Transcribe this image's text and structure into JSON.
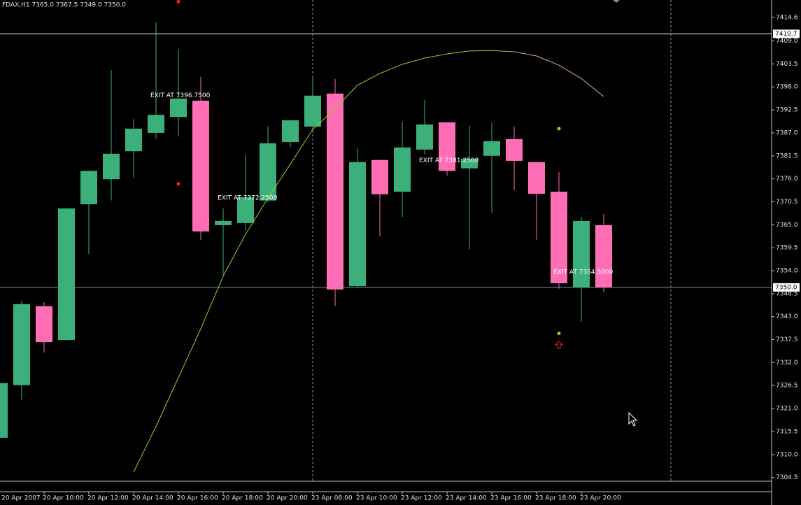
{
  "chart_data": {
    "type": "candlestick",
    "title": "FDAX,H1  7365.0 7367.5 7349.0 7350.0",
    "categories": [
      "20 Apr 2007",
      null,
      "20 Apr 10:00",
      null,
      "20 Apr 12:00",
      null,
      "20 Apr 14:00",
      null,
      "20 Apr 16:00",
      null,
      "20 Apr 18:00",
      null,
      "20 Apr 20:00",
      null,
      "23 Apr 08:00",
      null,
      "23 Apr 10:00",
      null,
      "23 Apr 12:00",
      null,
      "23 Apr 14:00",
      null,
      "23 Apr 16:00",
      null,
      "23 Apr 18:00",
      null,
      "23 Apr 20:00",
      null
    ],
    "open": [
      7314.0,
      7326.6,
      7345.5,
      7337.4,
      7369.9,
      7375.9,
      7382.6,
      7387.0,
      7390.8,
      7394.7,
      7364.9,
      7365.4,
      7370.8,
      7384.8,
      7388.5,
      7396.4,
      7350.3,
      7380.5,
      7372.9,
      7383.0,
      7389.5,
      7378.5,
      7381.5,
      7385.5,
      7380.0,
      7372.9,
      7350.0,
      7364.9
    ],
    "high": [
      7327.1,
      7346.8,
      7346.5,
      7369.0,
      7378.0,
      7402.0,
      7390.3,
      7413.4,
      7407.1,
      7400.4,
      7368.9,
      7381.6,
      7388.5,
      7390.0,
      7400.2,
      7399.9,
      7383.3,
      7380.5,
      7389.7,
      7394.9,
      7389.5,
      7388.7,
      7389.5,
      7388.5,
      7380.0,
      7377.6,
      7366.9,
      7367.6
    ],
    "low": [
      7313.5,
      7323.1,
      7334.4,
      7337.2,
      7358.0,
      7370.8,
      7376.3,
      7385.6,
      7386.1,
      7361.4,
      7353.0,
      7363.6,
      7370.3,
      7383.6,
      7387.0,
      7345.5,
      7350.0,
      7362.2,
      7366.9,
      7381.8,
      7376.8,
      7359.2,
      7367.9,
      7373.3,
      7361.4,
      7349.7,
      7341.8,
      7348.8
    ],
    "close": [
      7327.1,
      7346.0,
      7336.9,
      7368.9,
      7377.9,
      7382.0,
      7388.0,
      7391.3,
      7395.2,
      7363.4,
      7365.9,
      7371.6,
      7384.5,
      7390.0,
      7395.9,
      7349.5,
      7380.0,
      7372.3,
      7383.5,
      7389.0,
      7377.9,
      7380.8,
      7385.0,
      7380.3,
      7372.4,
      7351.0,
      7365.9,
      7350.0
    ],
    "up_color": "#3cb07a",
    "down_color": "#ff6eb4",
    "indicator": [
      {
        "color": "#9acd32",
        "values": [
          null,
          null,
          null,
          null,
          null,
          null,
          7305.8,
          7316.7,
          7328.4,
          7340.1,
          7352.7,
          7362.7,
          7371.4,
          7379.5,
          7387.8,
          7392.8,
          7398.4,
          7401.2,
          7403.4,
          7404.9,
          7405.9,
          7406.6,
          7406.7,
          7406.4,
          null,
          null,
          null,
          null
        ]
      },
      {
        "color": "#e8a0c8",
        "values": [
          null,
          null,
          null,
          null,
          null,
          null,
          null,
          null,
          null,
          null,
          null,
          null,
          null,
          null,
          null,
          null,
          null,
          null,
          null,
          null,
          null,
          null,
          null,
          7406.4,
          7405.4,
          7403.2,
          7400.0,
          7395.7
        ]
      }
    ],
    "ylim": [
      7303.6,
      7418.8
    ],
    "yticks": [
      {
        "value": 7414.6,
        "label": "7414.6"
      },
      {
        "value": 7409.0,
        "label": "7409.0"
      },
      {
        "value": 7403.5,
        "label": "7403.5"
      },
      {
        "value": 7398.0,
        "label": "7398.0"
      },
      {
        "value": 7392.5,
        "label": "7392.5"
      },
      {
        "value": 7387.0,
        "label": "7387.0"
      },
      {
        "value": 7381.5,
        "label": "7381.5"
      },
      {
        "value": 7376.0,
        "label": "7376.0"
      },
      {
        "value": 7370.5,
        "label": "7370.5"
      },
      {
        "value": 7365.0,
        "label": "7365.0"
      },
      {
        "value": 7359.5,
        "label": "7359.5"
      },
      {
        "value": 7354.0,
        "label": "7354.0"
      },
      {
        "value": 7348.5,
        "label": "7348.5"
      },
      {
        "value": 7343.0,
        "label": "7343.0"
      },
      {
        "value": 7337.5,
        "label": "7337.5"
      },
      {
        "value": 7332.0,
        "label": "7332.0"
      },
      {
        "value": 7326.5,
        "label": "7326.5"
      },
      {
        "value": 7321.0,
        "label": "7321.0"
      },
      {
        "value": 7315.5,
        "label": "7315.5"
      },
      {
        "value": 7310.0,
        "label": "7310.0"
      },
      {
        "value": 7304.5,
        "label": "7304.5"
      }
    ],
    "levels": [
      {
        "value": 7410.7,
        "label": "7410.7",
        "color": "#ffffff"
      },
      {
        "value": 7350.0,
        "label": "7350.0",
        "color": "#7d8ea3"
      }
    ],
    "vlines": [
      14,
      30
    ],
    "annotations": [
      {
        "text": "EXIT AT 7396.7500",
        "index": 7,
        "value": 7396.75
      },
      {
        "text": "EXIT AT 7372.2500",
        "index": 10,
        "value": 7372.25
      },
      {
        "text": "EXIT AT 7381.2500",
        "index": 19,
        "value": 7381.25
      },
      {
        "text": "EXIT AT 7354.5000",
        "index": 25,
        "value": 7354.5
      }
    ],
    "markers": [
      {
        "index": 8,
        "value": 7418.4,
        "color": "#ff2020",
        "shape": "dot"
      },
      {
        "index": 8,
        "value": 7374.8,
        "color": "#ff2020",
        "shape": "dot"
      },
      {
        "index": 25,
        "value": 7388.0,
        "color": "#9acd32",
        "shape": "dot"
      },
      {
        "index": 25,
        "value": 7339.0,
        "color": "#9acd32",
        "shape": "dot"
      },
      {
        "index": 25,
        "value": 7336.3,
        "color": "#ff2020",
        "shape": "arrow"
      }
    ]
  }
}
